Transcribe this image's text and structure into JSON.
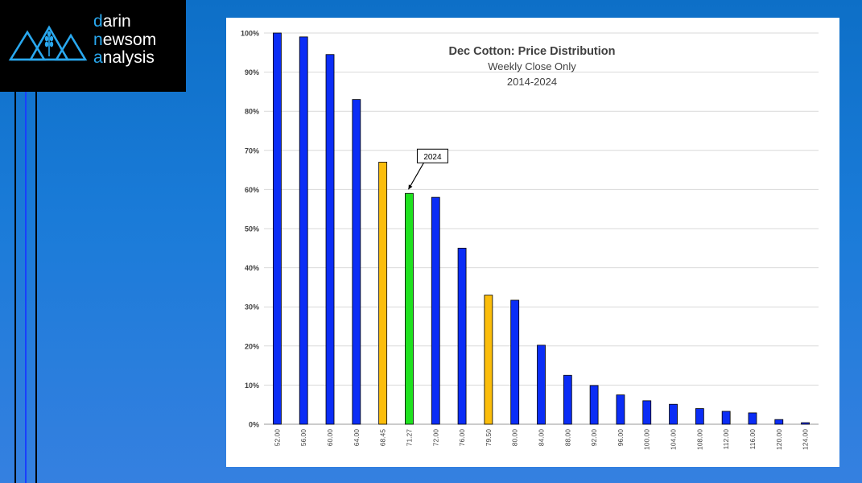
{
  "logo": {
    "line1_first": "d",
    "line1_rest": "arin",
    "line2_first": "n",
    "line2_rest": "ewsom",
    "line3_first": "a",
    "line3_rest": "nalysis"
  },
  "colors": {
    "background": "#1a7bd8",
    "logo_accent": "#29a8ef",
    "bar_default": "#0b2df6",
    "bar_highlight": "#fbbd0b",
    "bar_current": "#1fe21f"
  },
  "chart_data": {
    "type": "bar",
    "title": "Dec Cotton: Price Distribution",
    "subtitle_1": "Weekly Close Only",
    "subtitle_2": "2014-2024",
    "xlabel": "",
    "ylabel": "",
    "ylim": [
      0,
      100
    ],
    "yticks": [
      "0%",
      "10%",
      "20%",
      "30%",
      "40%",
      "50%",
      "60%",
      "70%",
      "80%",
      "90%",
      "100%"
    ],
    "grid": true,
    "categories": [
      "52.00",
      "56.00",
      "60.00",
      "64.00",
      "68.45",
      "71.27",
      "72.00",
      "76.00",
      "79.50",
      "80.00",
      "84.00",
      "88.00",
      "92.00",
      "96.00",
      "100.00",
      "104.00",
      "108.00",
      "112.00",
      "116.00",
      "120.00",
      "124.00"
    ],
    "values": [
      100,
      99,
      94.5,
      83,
      67,
      59,
      58,
      45,
      33,
      31.7,
      20.2,
      12.5,
      9.9,
      7.5,
      6,
      5.1,
      4,
      3.3,
      2.9,
      1.2,
      0.4
    ],
    "bar_colors": [
      "default",
      "default",
      "default",
      "default",
      "highlight",
      "current",
      "default",
      "default",
      "highlight",
      "default",
      "default",
      "default",
      "default",
      "default",
      "default",
      "default",
      "default",
      "default",
      "default",
      "default",
      "default"
    ],
    "annotation": {
      "label": "2024",
      "category": "71.27"
    }
  }
}
